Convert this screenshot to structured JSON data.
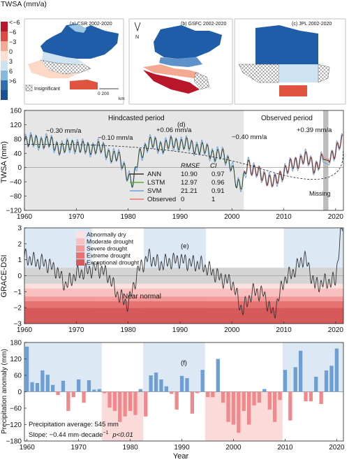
{
  "colors": {
    "ann": "#333333",
    "lstm": "#5aaa3c",
    "svm": "#6aa0d8",
    "observed": "#f08f8f",
    "pos": "#6f9fd2",
    "neg": "#f1898c",
    "shade_blue": "#dde8f5",
    "shade_red": "#fbdada",
    "hind": "#e6e6e6",
    "near": "#d4d4d4"
  },
  "legend_top": {
    "title": "TWSA (mm/a)",
    "labels": [
      "<−6",
      "−6",
      "−3",
      "0",
      "3",
      "6",
      ">6"
    ],
    "colors": [
      "#b8172a",
      "#dd4a44",
      "#f4a993",
      "#fbe0d0",
      "#cde3f1",
      "#86b9dc",
      "#2e6fb0",
      "#1b4f93"
    ],
    "insignificant": "Insignificant",
    "scale_label": "0    200",
    "scale_unit": "km"
  },
  "maps": [
    {
      "title": "(a) CSR 2002-2020"
    },
    {
      "title": "(b) GSFC 2002-2020",
      "north": "N"
    },
    {
      "title": "(c) JPL 2002-2020"
    }
  ],
  "panel_d": {
    "label": "(d)",
    "hindcast": "Hindcasted period",
    "observed": "Observed period",
    "missing": "Missing",
    "trends": [
      "−0.30 mm/a",
      "−0.10 mm/a",
      "+0.06 mm/a",
      "−0.40 mm/a",
      "+0.39 mm/a"
    ],
    "table_header": [
      "RMSE",
      "CI"
    ],
    "table_rows": [
      {
        "name": "ANN",
        "rmse": "10.90",
        "ci": "0.97"
      },
      {
        "name": "LSTM",
        "rmse": "12.97",
        "ci": "0.96"
      },
      {
        "name": "SVM",
        "rmse": "21.21",
        "ci": "0.91"
      },
      {
        "name": "Observed",
        "rmse": "0",
        "ci": "1"
      }
    ],
    "ylabel": "TWSA (mm)",
    "yticks": [
      "160",
      "120",
      "80",
      "40",
      "0",
      "−40",
      "−80",
      "−120"
    ],
    "xticks": [
      "1960",
      "1970",
      "1980",
      "1990",
      "2000",
      "2010",
      "2020"
    ]
  },
  "panel_e": {
    "label": "(e)",
    "ylabel": "GRACE-DSI",
    "near": "Near normal",
    "yticks": [
      "3",
      "2",
      "1",
      "0",
      "−1",
      "−2",
      "−3"
    ],
    "xticks": [
      "1960",
      "1970",
      "1980",
      "1990",
      "2000",
      "2010",
      "2020"
    ],
    "categories": [
      "Abnormally dry",
      "Moderate drought",
      "Severe drought",
      "Extreme drought",
      "Exceptional drought"
    ],
    "cat_colors": [
      "#fde0e0",
      "#f9c0c0",
      "#f29a9a",
      "#e77272",
      "#d65a5a"
    ]
  },
  "panel_f": {
    "label": "(f)",
    "ylabel": "Precipitation anomaly (mm)",
    "xlabel": "Year",
    "yticks": [
      "180",
      "120",
      "60",
      "0",
      "−60",
      "−120",
      "−180"
    ],
    "xticks": [
      "1960",
      "1970",
      "1980",
      "1990",
      "2000",
      "2010",
      "2020"
    ],
    "average": "Precipitation average: 545 mm",
    "slope": "Slope: −0.44 mm·decade",
    "slope_sup": "−1",
    "pval": "p<0.01"
  },
  "chart_data": [
    {
      "type": "line",
      "title": "",
      "ylabel": "TWSA (mm)",
      "xlim": [
        1960,
        2021.5
      ],
      "ylim": [
        -120,
        160
      ],
      "series": [
        {
          "name": "ANN"
        },
        {
          "name": "LSTM"
        },
        {
          "name": "SVM"
        },
        {
          "name": "Observed"
        }
      ],
      "x": [
        1960,
        1962,
        1964,
        1966,
        1968,
        1970,
        1972,
        1974,
        1976,
        1978,
        1980,
        1981,
        1982,
        1984,
        1986,
        1988,
        1990,
        1992,
        1994,
        1996,
        1998,
        2000,
        2001,
        2002,
        2003,
        2004,
        2006,
        2008,
        2010,
        2012,
        2014,
        2016,
        2017,
        2019,
        2020,
        2021
      ],
      "y": [
        80,
        70,
        75,
        60,
        55,
        65,
        50,
        60,
        40,
        30,
        -20,
        -45,
        30,
        70,
        60,
        65,
        70,
        60,
        55,
        40,
        35,
        10,
        -55,
        -50,
        20,
        -10,
        -20,
        -45,
        -10,
        10,
        30,
        0,
        20,
        30,
        50,
        70
      ]
    },
    {
      "type": "line",
      "title": "",
      "ylabel": "GRACE-DSI",
      "xlim": [
        1960,
        2021.5
      ],
      "ylim": [
        -3,
        3
      ],
      "x": [
        1960,
        1962,
        1964,
        1966,
        1968,
        1970,
        1972,
        1974,
        1976,
        1978,
        1980,
        1982,
        1984,
        1986,
        1988,
        1990,
        1992,
        1994,
        1996,
        1998,
        2000,
        2002,
        2004,
        2006,
        2008,
        2010,
        2012,
        2014,
        2016,
        2018,
        2020,
        2021
      ],
      "y": [
        1.2,
        0.9,
        0.8,
        0.4,
        -0.6,
        0.1,
        0.3,
        0.5,
        0.1,
        -1.2,
        -1.8,
        0.4,
        1.2,
        0.7,
        0.9,
        1.0,
        0.8,
        0.7,
        0.3,
        -0.2,
        -0.4,
        -2.2,
        -1.0,
        -1.1,
        -2.5,
        -0.3,
        0.3,
        1.2,
        -0.6,
        -0.4,
        -0.3,
        2.9
      ]
    },
    {
      "type": "bar",
      "title": "",
      "xlabel": "Year",
      "ylabel": "Precipitation anomaly (mm)",
      "ylim": [
        -180,
        180
      ],
      "categories": [
        1960,
        1961,
        1962,
        1963,
        1964,
        1965,
        1966,
        1967,
        1968,
        1969,
        1970,
        1971,
        1972,
        1973,
        1974,
        1975,
        1976,
        1977,
        1978,
        1979,
        1980,
        1981,
        1982,
        1983,
        1984,
        1985,
        1986,
        1987,
        1988,
        1989,
        1990,
        1991,
        1992,
        1993,
        1994,
        1995,
        1996,
        1997,
        1998,
        1999,
        2000,
        2001,
        2002,
        2003,
        2004,
        2005,
        2006,
        2007,
        2008,
        2009,
        2010,
        2011,
        2012,
        2013,
        2014,
        2015,
        2016,
        2017,
        2018,
        2019,
        2020
      ],
      "values": [
        165,
        35,
        32,
        78,
        62,
        25,
        -12,
        40,
        -70,
        -20,
        45,
        -40,
        42,
        8,
        10,
        -5,
        -58,
        -70,
        -110,
        -90,
        -70,
        -85,
        10,
        -90,
        60,
        70,
        45,
        20,
        -8,
        -65,
        58,
        50,
        -80,
        -5,
        80,
        -20,
        -20,
        120,
        -40,
        -110,
        -120,
        -150,
        -70,
        -120,
        -50,
        -40,
        10,
        -65,
        -110,
        -30,
        80,
        -105,
        90,
        150,
        -35,
        -35,
        55,
        -45,
        78,
        95,
        158
      ]
    }
  ]
}
